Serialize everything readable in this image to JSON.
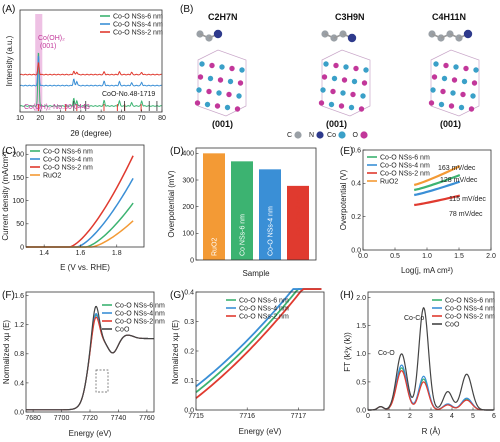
{
  "colors": {
    "nm6": "#3cb371",
    "nm4": "#3a8fd6",
    "nm2": "#e03a2f",
    "ruo2": "#f39a35",
    "coo": "#444444",
    "co_atom": "#3aa0c8",
    "c_atom": "#9aa0a6",
    "n_atom": "#2e3a8c",
    "o_atom": "#c2379a",
    "highlight": "#e7a6d8"
  },
  "panels": {
    "A": "(A)",
    "B": "(B)",
    "C": "(C)",
    "D": "(D)",
    "E": "(E)",
    "F": "(F)",
    "G": "(G)",
    "H": "(H)"
  },
  "structures": {
    "formulas": [
      "C2H7N",
      "C3H9N",
      "C4H11N"
    ],
    "facets": [
      "(001)",
      "(001)",
      "(001)"
    ],
    "legend": [
      {
        "symbol": "C",
        "icon": "c-atom-icon"
      },
      {
        "symbol": "N",
        "icon": "n-atom-icon"
      },
      {
        "symbol": "Co",
        "icon": "co-atom-icon"
      },
      {
        "symbol": "O",
        "icon": "o-atom-icon"
      }
    ]
  },
  "chart_data": [
    {
      "panel": "A",
      "type": "line",
      "xlabel": "2θ (degree)",
      "ylabel": "Intensity (a.u.)",
      "xlim": [
        10,
        80
      ],
      "xticks": [
        10,
        20,
        30,
        40,
        50,
        60,
        70,
        80
      ],
      "legend": [
        "Co-O NSs-6 nm",
        "Co-O NSs-4 nm",
        "Co-O NSs-2 nm"
      ],
      "series": [
        {
          "name": "Co-O NSs-6 nm",
          "color_key": "nm6",
          "offset": 0.0,
          "peaks": [
            [
              19.1,
              1.0
            ],
            [
              36.5,
              0.14
            ],
            [
              38.0,
              0.1
            ],
            [
              51.5,
              0.1
            ],
            [
              59.0,
              0.09
            ],
            [
              65.0,
              0.06
            ],
            [
              70.0,
              0.09
            ]
          ]
        },
        {
          "name": "Co-O NSs-4 nm",
          "color_key": "nm4",
          "offset": 0.28,
          "peaks": [
            [
              19.1,
              0.55
            ],
            [
              36.5,
              0.12
            ],
            [
              38.0,
              0.08
            ],
            [
              51.5,
              0.08
            ],
            [
              59.0,
              0.07
            ],
            [
              65.0,
              0.05
            ],
            [
              70.0,
              0.06
            ]
          ]
        },
        {
          "name": "Co-O NSs-2 nm",
          "color_key": "nm2",
          "offset": 0.48,
          "peaks": [
            [
              19.1,
              0.22
            ],
            [
              36.5,
              0.06
            ],
            [
              38.0,
              0.05
            ],
            [
              51.5,
              0.05
            ],
            [
              59.0,
              0.05
            ],
            [
              65.0,
              0.04
            ],
            [
              70.0,
              0.04
            ]
          ]
        }
      ],
      "annotations": [
        {
          "text": "Co(OH)₂",
          "x": 17.0
        },
        {
          "text": "(001)",
          "x": 17.0
        },
        {
          "text": "Co(OH)₂-No.30-0443",
          "x": 13.0
        },
        {
          "text": "CoO-No.48-1719",
          "x": 43.0
        }
      ],
      "reference_sticks": {
        "co_oh2": [
          19.1,
          32.5,
          38.0,
          51.4,
          58.0,
          61.6,
          69.7
        ],
        "coo": [
          36.5,
          42.4,
          61.5,
          73.7,
          77.5
        ]
      },
      "highlight_band": [
        17.5,
        21.0
      ]
    },
    {
      "panel": "C",
      "type": "line",
      "xlabel": "E (V vs. RHE)",
      "ylabel": "Current density (mA/cm²)",
      "xlim": [
        1.3,
        1.95
      ],
      "ylim": [
        0,
        220
      ],
      "xticks": [
        1.4,
        1.6,
        1.8
      ],
      "yticks": [
        0,
        50,
        100,
        150,
        200
      ],
      "series": [
        {
          "name": "Co-O NSs-6 nm",
          "color_key": "nm6",
          "onset": 1.63,
          "end": 100
        },
        {
          "name": "Co-O NSs-4 nm",
          "color_key": "nm4",
          "onset": 1.58,
          "end": 155
        },
        {
          "name": "Co-O NSs-2 nm",
          "color_key": "nm2",
          "onset": 1.54,
          "end": 205
        },
        {
          "name": "RuO2",
          "color_key": "ruo2",
          "onset": 1.66,
          "end": 60
        }
      ]
    },
    {
      "panel": "D",
      "type": "bar",
      "xlabel": "Sample",
      "ylabel": "Overpotential (mV)",
      "ylim": [
        0,
        420
      ],
      "yticks": [
        0,
        100,
        200,
        300,
        400
      ],
      "categories": [
        "RuO2",
        "Co NSs-6 nm",
        "Co-O NSs-4 nm",
        "Co NSs-2 nm"
      ],
      "values": [
        400,
        370,
        340,
        278
      ],
      "color_keys": [
        "ruo2",
        "nm6",
        "nm4",
        "nm2"
      ]
    },
    {
      "panel": "E",
      "type": "line",
      "xlabel": "Log(j, mA cm²)",
      "ylabel": "Overpotential (V)",
      "xlim": [
        0.0,
        2.0
      ],
      "ylim": [
        0.0,
        0.6
      ],
      "xticks": [
        0.0,
        0.5,
        1.0,
        1.5,
        2.0
      ],
      "yticks": [
        0.0,
        0.2,
        0.4,
        0.6
      ],
      "series": [
        {
          "name": "Co-O NSs-6 nm",
          "color_key": "nm6",
          "tafel": "128 mV/dec",
          "x": [
            0.8,
            1.55
          ],
          "y": [
            0.36,
            0.455
          ]
        },
        {
          "name": "Co-O NSs-4 nm",
          "color_key": "nm4",
          "tafel": "115 mV/dec",
          "x": [
            0.8,
            1.55
          ],
          "y": [
            0.33,
            0.415
          ]
        },
        {
          "name": "Co-O NSs-2 nm",
          "color_key": "nm2",
          "tafel": "78 mV/dec",
          "x": [
            0.8,
            1.55
          ],
          "y": [
            0.27,
            0.33
          ]
        },
        {
          "name": "RuO2",
          "color_key": "ruo2",
          "tafel": "163 mV/dec",
          "x": [
            0.8,
            1.55
          ],
          "y": [
            0.39,
            0.51
          ]
        }
      ]
    },
    {
      "panel": "F",
      "type": "line",
      "xlabel": "Energy (eV)",
      "ylabel": "Normalized xμ (E)",
      "xlim": [
        7675,
        7765
      ],
      "ylim": [
        0.0,
        1.65
      ],
      "xticks": [
        7680,
        7700,
        7720,
        7740,
        7760
      ],
      "yticks": [
        0.0,
        0.4,
        0.8,
        1.2,
        1.6
      ],
      "series": [
        {
          "name": "Co-O NSs-6 nm",
          "color_key": "nm6",
          "wl": 1.38
        },
        {
          "name": "Co-O NSs-4 nm",
          "color_key": "nm4",
          "wl": 1.4
        },
        {
          "name": "Co-O NSs-2 nm",
          "color_key": "nm2",
          "wl": 1.35
        },
        {
          "name": "CoO",
          "color_key": "coo",
          "wl": 1.5
        }
      ]
    },
    {
      "panel": "G",
      "type": "line",
      "xlabel": "Energy (eV)",
      "ylabel": "Normalized xμ (E)",
      "xlim": [
        7715,
        7717.5
      ],
      "ylim": [
        0.0,
        0.4
      ],
      "xticks": [
        7715,
        7716,
        7717
      ],
      "yticks": [
        0.0,
        0.1,
        0.2,
        0.3,
        0.4
      ],
      "series": [
        {
          "name": "Co-O NSs-6 nm",
          "color_key": "nm6",
          "shift": 0.0
        },
        {
          "name": "Co-O NSs-4 nm",
          "color_key": "nm4",
          "shift": 0.02
        },
        {
          "name": "Co-O NSs-2 nm",
          "color_key": "nm2",
          "shift": -0.02
        }
      ]
    },
    {
      "panel": "H",
      "type": "line",
      "xlabel": "R (Å)",
      "ylabel": "FT (k³χ (k))",
      "xlim": [
        0,
        6
      ],
      "ylim": [
        0,
        2.1
      ],
      "xticks": [
        0,
        1,
        2,
        3,
        4,
        5,
        6
      ],
      "yticks": [
        0.0,
        0.5,
        1.0,
        1.5,
        2.0
      ],
      "annotations": [
        "Co-O",
        "Co-Co"
      ],
      "series": [
        {
          "name": "Co-O NSs-6 nm",
          "color_key": "nm6",
          "p1": 0.75,
          "p2": 0.55
        },
        {
          "name": "Co-O NSs-4 nm",
          "color_key": "nm4",
          "p1": 0.8,
          "p2": 0.6
        },
        {
          "name": "Co-O NSs-2 nm",
          "color_key": "nm2",
          "p1": 0.7,
          "p2": 0.5
        },
        {
          "name": "CoO",
          "color_key": "coo",
          "p1": 1.0,
          "p2": 1.82
        }
      ]
    }
  ]
}
